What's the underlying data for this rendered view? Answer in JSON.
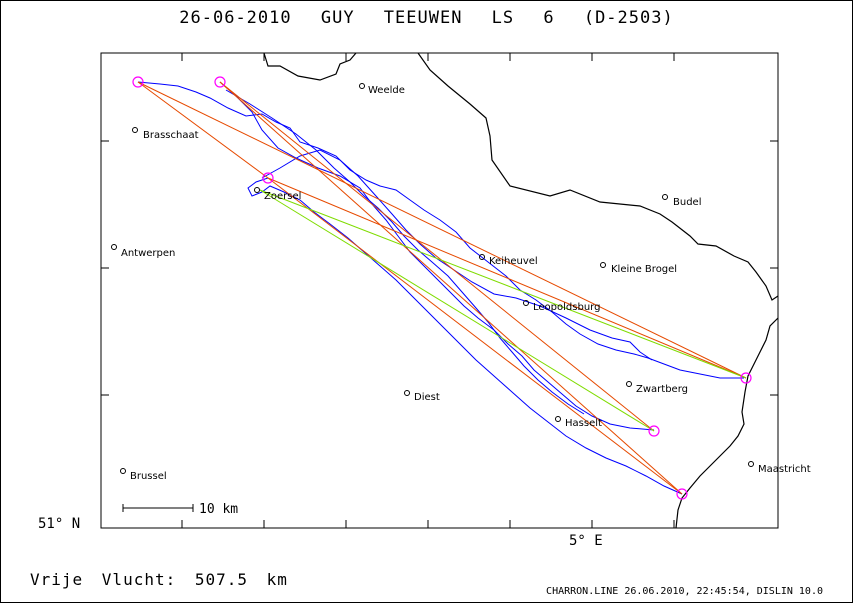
{
  "title": "26-06-2010   GUY TEEUWEN   LS 6 (D-2503)",
  "axis": {
    "lat_label": "51° N",
    "lon_label": "5° E"
  },
  "distance_text": "Vrije Vlucht:  507.5 km",
  "footer_text": "CHARRON.LINE 26.06.2010, 22:45:54, DISLIN 10.0",
  "scale_bar": {
    "label": "10 km"
  },
  "towns": [
    {
      "name": "Weelde"
    },
    {
      "name": "Brasschaat"
    },
    {
      "name": "Zoersel"
    },
    {
      "name": "Budel"
    },
    {
      "name": "Antwerpen"
    },
    {
      "name": "Keiheuvel"
    },
    {
      "name": "Kleine Brogel"
    },
    {
      "name": "Leopoldsburg"
    },
    {
      "name": "Zwartberg"
    },
    {
      "name": "Diest"
    },
    {
      "name": "Hasselt"
    },
    {
      "name": "Brussel"
    },
    {
      "name": "Maastricht"
    }
  ],
  "colors": {
    "track": "#0000ff",
    "legs": "#e64a00",
    "legs_alt": "#7fdc00",
    "turnpoints": "#ff00ff",
    "border": "#000000"
  }
}
